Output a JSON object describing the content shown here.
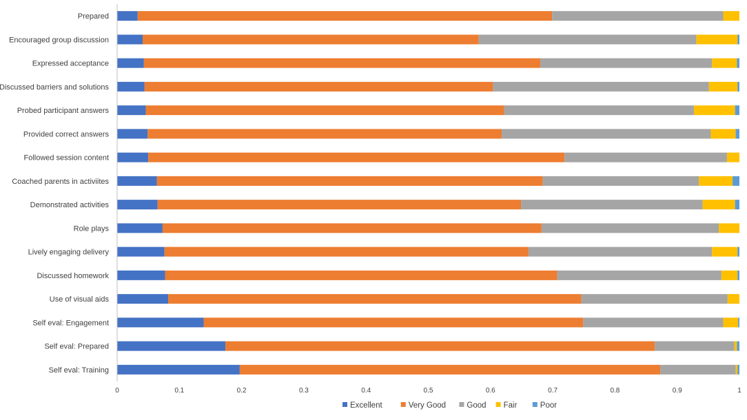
{
  "colors": {
    "Excellent": "#4472c4",
    "Very Good": "#ed7d31",
    "Good": "#a5a5a5",
    "Fair": "#ffc000",
    "Poor": "#5b9bd5"
  },
  "chart_data": {
    "type": "bar",
    "orientation": "horizontal",
    "stacked": true,
    "title": "",
    "xlabel": "",
    "ylabel": "",
    "xlim": [
      0,
      1
    ],
    "xticks": [
      "0",
      "0.1",
      "0.2",
      "0.3",
      "0.4",
      "0.5",
      "0.6",
      "0.7",
      "0.8",
      "0.9",
      "1"
    ],
    "grid": false,
    "legend_position": "bottom",
    "categories": [
      "Prepared",
      "Encouraged group discussion",
      "Expressed acceptance",
      "Discussed barriers and solutions",
      "Probed participant answers",
      "Provided correct answers",
      "Followed session content",
      "Coached parents in activiites",
      "Demonstrated activities",
      "Role plays",
      "Lively engaging delivery",
      "Discussed homework",
      "Use of visual aids",
      "Self eval: Engagement",
      "Self eval: Prepared",
      "Self eval: Training"
    ],
    "series": [
      {
        "name": "Excellent",
        "values": [
          0.033,
          0.041,
          0.043,
          0.044,
          0.046,
          0.049,
          0.05,
          0.064,
          0.065,
          0.073,
          0.076,
          0.077,
          0.082,
          0.139,
          0.174,
          0.197
        ]
      },
      {
        "name": "Very Good",
        "values": [
          0.666,
          0.54,
          0.637,
          0.56,
          0.576,
          0.569,
          0.669,
          0.62,
          0.584,
          0.609,
          0.585,
          0.63,
          0.664,
          0.61,
          0.69,
          0.676
        ]
      },
      {
        "name": "Good",
        "values": [
          0.275,
          0.35,
          0.276,
          0.347,
          0.305,
          0.336,
          0.261,
          0.251,
          0.292,
          0.285,
          0.295,
          0.264,
          0.235,
          0.225,
          0.128,
          0.121
        ]
      },
      {
        "name": "Fair",
        "values": [
          0.026,
          0.066,
          0.04,
          0.046,
          0.066,
          0.04,
          0.02,
          0.054,
          0.052,
          0.033,
          0.041,
          0.026,
          0.019,
          0.024,
          0.004,
          0.003
        ]
      },
      {
        "name": "Poor",
        "values": [
          0.0,
          0.003,
          0.004,
          0.003,
          0.007,
          0.006,
          0.0,
          0.011,
          0.007,
          0.0,
          0.003,
          0.003,
          0.0,
          0.002,
          0.004,
          0.003
        ]
      }
    ]
  }
}
